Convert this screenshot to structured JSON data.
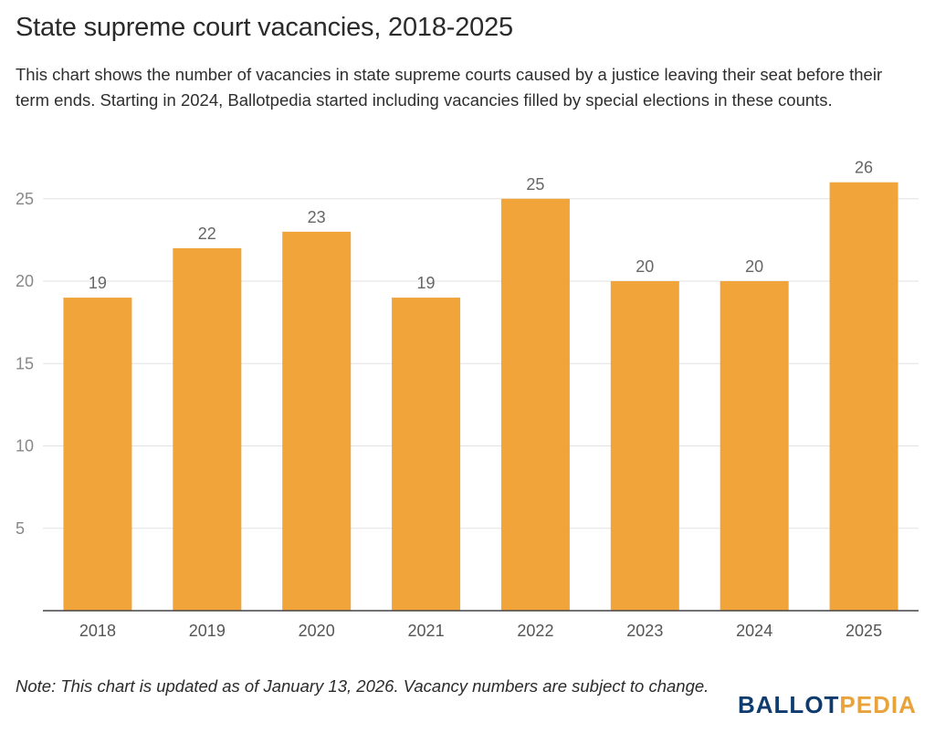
{
  "header": {
    "title": "State supreme court vacancies, 2018-2025",
    "subtitle": "This chart shows the number of vacancies in state supreme courts caused by a justice leaving their seat before their term ends. Starting in 2024, Ballotpedia started including vacancies filled by special elections in these counts."
  },
  "footer": {
    "note": "Note: This chart is updated as of January 13, 2026. Vacancy numbers are subject to change.",
    "logo_part1": "BALLOT",
    "logo_part2": "PEDIA"
  },
  "colors": {
    "bar": "#f0a43a",
    "grid": "#e2e2e2",
    "axis_line": "#444444",
    "tick_label": "#888888",
    "value_label": "#666666",
    "logo_dark": "#0f3b6e",
    "logo_accent": "#e8a33d"
  },
  "chart_data": {
    "type": "bar",
    "title": "State supreme court vacancies, 2018-2025",
    "xlabel": "",
    "ylabel": "",
    "categories": [
      "2018",
      "2019",
      "2020",
      "2021",
      "2022",
      "2023",
      "2024",
      "2025"
    ],
    "values": [
      19,
      22,
      23,
      19,
      25,
      20,
      20,
      26
    ],
    "yticks": [
      5,
      10,
      15,
      20,
      25
    ],
    "ylim": [
      0,
      26
    ],
    "grid": true,
    "legend": "none",
    "data_labels": true
  }
}
